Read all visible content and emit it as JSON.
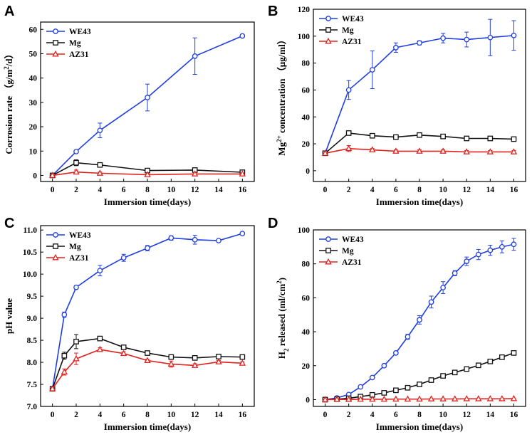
{
  "chart_data": [
    {
      "panel": "A",
      "type": "line",
      "title": "",
      "xlabel": "Immersion time(days)",
      "ylabel": "Corrosion rate (g/m2/d)",
      "ylabel_parts": {
        "pre": "Corrosion rate  （g/m",
        "sup": "2",
        "post": "/d）"
      },
      "xlim": [
        -1,
        17
      ],
      "ylim": [
        -2.5,
        63
      ],
      "xticks": [
        0,
        2,
        4,
        6,
        8,
        10,
        12,
        14,
        16
      ],
      "yticks": [
        0,
        10,
        20,
        30,
        40,
        50,
        60
      ],
      "legend": "top-left",
      "series": [
        {
          "name": "WE43",
          "color": "#1f3ee0",
          "marker": "circle",
          "x": [
            0,
            2,
            4,
            8,
            12,
            16
          ],
          "y": [
            0,
            9.8,
            18.5,
            32,
            49,
            57.3
          ],
          "err": [
            0,
            0.6,
            3,
            5.5,
            7.5,
            0.6
          ]
        },
        {
          "name": "Mg",
          "color": "#111111",
          "marker": "square",
          "x": [
            0,
            2,
            4,
            8,
            12,
            16
          ],
          "y": [
            0,
            5.2,
            4.3,
            2,
            2.2,
            1.3
          ],
          "err": [
            0,
            1.2,
            0.7,
            0.5,
            0.8,
            0.4
          ]
        },
        {
          "name": "AZ31",
          "color": "#e0231e",
          "marker": "triangle",
          "x": [
            0,
            2,
            4,
            8,
            12,
            16
          ],
          "y": [
            0,
            1.4,
            0.9,
            0.3,
            0.6,
            0.6
          ],
          "err": [
            0,
            0.8,
            0.5,
            0.3,
            0.5,
            0.3
          ]
        }
      ]
    },
    {
      "panel": "B",
      "type": "line",
      "title": "",
      "xlabel": "Immersion time(days)",
      "ylabel": "Mg2+ concentration (μg/ml)",
      "ylabel_parts": {
        "pre": "Mg",
        "sup": "2+",
        "post": " concentration  （μg/ml）"
      },
      "xlim": [
        -1,
        17
      ],
      "ylim": [
        -8,
        120
      ],
      "xticks": [
        0,
        2,
        4,
        6,
        8,
        10,
        12,
        14,
        16
      ],
      "yticks": [
        0,
        20,
        40,
        60,
        80,
        100,
        120
      ],
      "legend": "top-left",
      "series": [
        {
          "name": "WE43",
          "color": "#1f3ee0",
          "marker": "circle",
          "x": [
            0,
            2,
            4,
            6,
            8,
            10,
            12,
            14,
            16
          ],
          "y": [
            13,
            60,
            75,
            91.5,
            95,
            98.5,
            97.5,
            99,
            100.5
          ],
          "err": [
            0,
            7,
            14,
            3.5,
            1.5,
            3.5,
            5.5,
            13.5,
            11
          ]
        },
        {
          "name": "Mg",
          "color": "#111111",
          "marker": "square",
          "x": [
            0,
            2,
            4,
            6,
            8,
            10,
            12,
            14,
            16
          ],
          "y": [
            13,
            28,
            26,
            25,
            26.5,
            25.5,
            24,
            24,
            23.5
          ],
          "err": [
            0,
            1.2,
            1.2,
            1.2,
            1.2,
            1.2,
            1.2,
            1.2,
            1.2
          ]
        },
        {
          "name": "AZ31",
          "color": "#e0231e",
          "marker": "triangle",
          "x": [
            0,
            2,
            4,
            6,
            8,
            10,
            12,
            14,
            16
          ],
          "y": [
            13,
            16.5,
            15.5,
            14.5,
            14.5,
            14.5,
            14,
            14,
            14
          ],
          "err": [
            0,
            2.2,
            1,
            1,
            1,
            1,
            1,
            1,
            1
          ]
        }
      ]
    },
    {
      "panel": "C",
      "type": "line",
      "title": "",
      "xlabel": "Immersion time(days)",
      "ylabel": "pH value",
      "ylabel_parts": {
        "pre": "pH value",
        "sup": "",
        "post": ""
      },
      "xlim": [
        -1,
        17
      ],
      "ylim": [
        7.0,
        11.1
      ],
      "xticks": [
        0,
        2,
        4,
        6,
        8,
        10,
        12,
        14,
        16
      ],
      "yticks": [
        7.0,
        7.5,
        8.0,
        8.5,
        9.0,
        9.5,
        10.0,
        10.5,
        11.0
      ],
      "ytick_labels": [
        "7.0",
        "7.5",
        "8.0",
        "8.5",
        "9.0",
        "9.5",
        "10.0",
        "10.5",
        "11.0"
      ],
      "legend": "top-left",
      "series": [
        {
          "name": "WE43",
          "color": "#1f3ee0",
          "marker": "circle",
          "x": [
            0,
            1,
            2,
            4,
            6,
            8,
            10,
            12,
            14,
            16
          ],
          "y": [
            7.4,
            9.08,
            9.7,
            10.08,
            10.37,
            10.59,
            10.82,
            10.78,
            10.76,
            10.92
          ],
          "err": [
            0,
            0.06,
            0.04,
            0.12,
            0.08,
            0.06,
            0.05,
            0.1,
            0.03,
            0.03
          ]
        },
        {
          "name": "Mg",
          "color": "#111111",
          "marker": "square",
          "x": [
            0,
            1,
            2,
            4,
            6,
            8,
            10,
            12,
            14,
            16
          ],
          "y": [
            7.4,
            8.15,
            8.47,
            8.54,
            8.34,
            8.21,
            8.12,
            8.1,
            8.13,
            8.12
          ],
          "err": [
            0,
            0.08,
            0.16,
            0.04,
            0.03,
            0.03,
            0.05,
            0.03,
            0.04,
            0.03
          ]
        },
        {
          "name": "AZ31",
          "color": "#e0231e",
          "marker": "triangle",
          "x": [
            0,
            1,
            2,
            4,
            6,
            8,
            10,
            12,
            14,
            16
          ],
          "y": [
            7.4,
            7.78,
            8.08,
            8.29,
            8.2,
            8.04,
            7.96,
            7.93,
            8.01,
            7.98
          ],
          "err": [
            0,
            0.07,
            0.13,
            0.04,
            0.04,
            0.03,
            0.07,
            0.04,
            0.03,
            0.03
          ]
        }
      ]
    },
    {
      "panel": "D",
      "type": "line",
      "title": "",
      "xlabel": "Immersion time(days)",
      "ylabel": "H2 released (ml/cm2)",
      "ylabel_parts": {
        "pre": "H",
        "sub": "2",
        "mid": " released (ml/cm",
        "sup": "2",
        "post": ")"
      },
      "xlim": [
        -1,
        17
      ],
      "ylim": [
        -4,
        100
      ],
      "xticks": [
        0,
        2,
        4,
        6,
        8,
        10,
        12,
        14,
        16
      ],
      "yticks": [
        0,
        20,
        40,
        60,
        80,
        100
      ],
      "legend": "top-left",
      "series": [
        {
          "name": "WE43",
          "color": "#1f3ee0",
          "marker": "circle",
          "x": [
            0,
            1,
            2,
            3,
            4,
            5,
            6,
            7,
            8,
            9,
            10,
            11,
            12,
            13,
            14,
            15,
            16
          ],
          "y": [
            0,
            1,
            3,
            7.5,
            13,
            20,
            27.5,
            37,
            47,
            57.5,
            66,
            74.5,
            81.5,
            85.5,
            88,
            90,
            91.5
          ],
          "err": [
            0,
            0.4,
            0.6,
            0.8,
            0.8,
            1,
            1,
            1.5,
            2.5,
            3.5,
            3.5,
            1.5,
            2.5,
            3,
            3,
            3.5,
            3.5
          ]
        },
        {
          "name": "Mg",
          "color": "#111111",
          "marker": "square",
          "x": [
            0,
            1,
            2,
            3,
            4,
            5,
            6,
            7,
            8,
            9,
            10,
            11,
            12,
            13,
            14,
            15,
            16
          ],
          "y": [
            0,
            0.3,
            0.8,
            1.8,
            2.8,
            4,
            5.5,
            7,
            9,
            11.5,
            14,
            16,
            18,
            20.2,
            22.5,
            25,
            27.5
          ],
          "err": [
            0,
            0.2,
            0.3,
            0.3,
            0.3,
            0.3,
            0.3,
            0.3,
            0.3,
            0.4,
            0.4,
            0.4,
            0.4,
            0.4,
            0.5,
            0.5,
            0.5
          ]
        },
        {
          "name": "AZ31",
          "color": "#e0231e",
          "marker": "triangle",
          "x": [
            0,
            1,
            2,
            3,
            4,
            5,
            6,
            7,
            8,
            9,
            10,
            11,
            12,
            13,
            14,
            15,
            16
          ],
          "y": [
            0,
            0.1,
            0.1,
            0.2,
            0.2,
            0.2,
            0.3,
            0.3,
            0.3,
            0.4,
            0.4,
            0.4,
            0.5,
            0.5,
            0.5,
            0.5,
            0.6
          ],
          "err": [
            0,
            0.1,
            0.1,
            0.1,
            0.1,
            0.1,
            0.1,
            0.1,
            0.1,
            0.1,
            0.1,
            0.1,
            0.1,
            0.1,
            0.1,
            0.1,
            0.1
          ]
        }
      ]
    }
  ]
}
